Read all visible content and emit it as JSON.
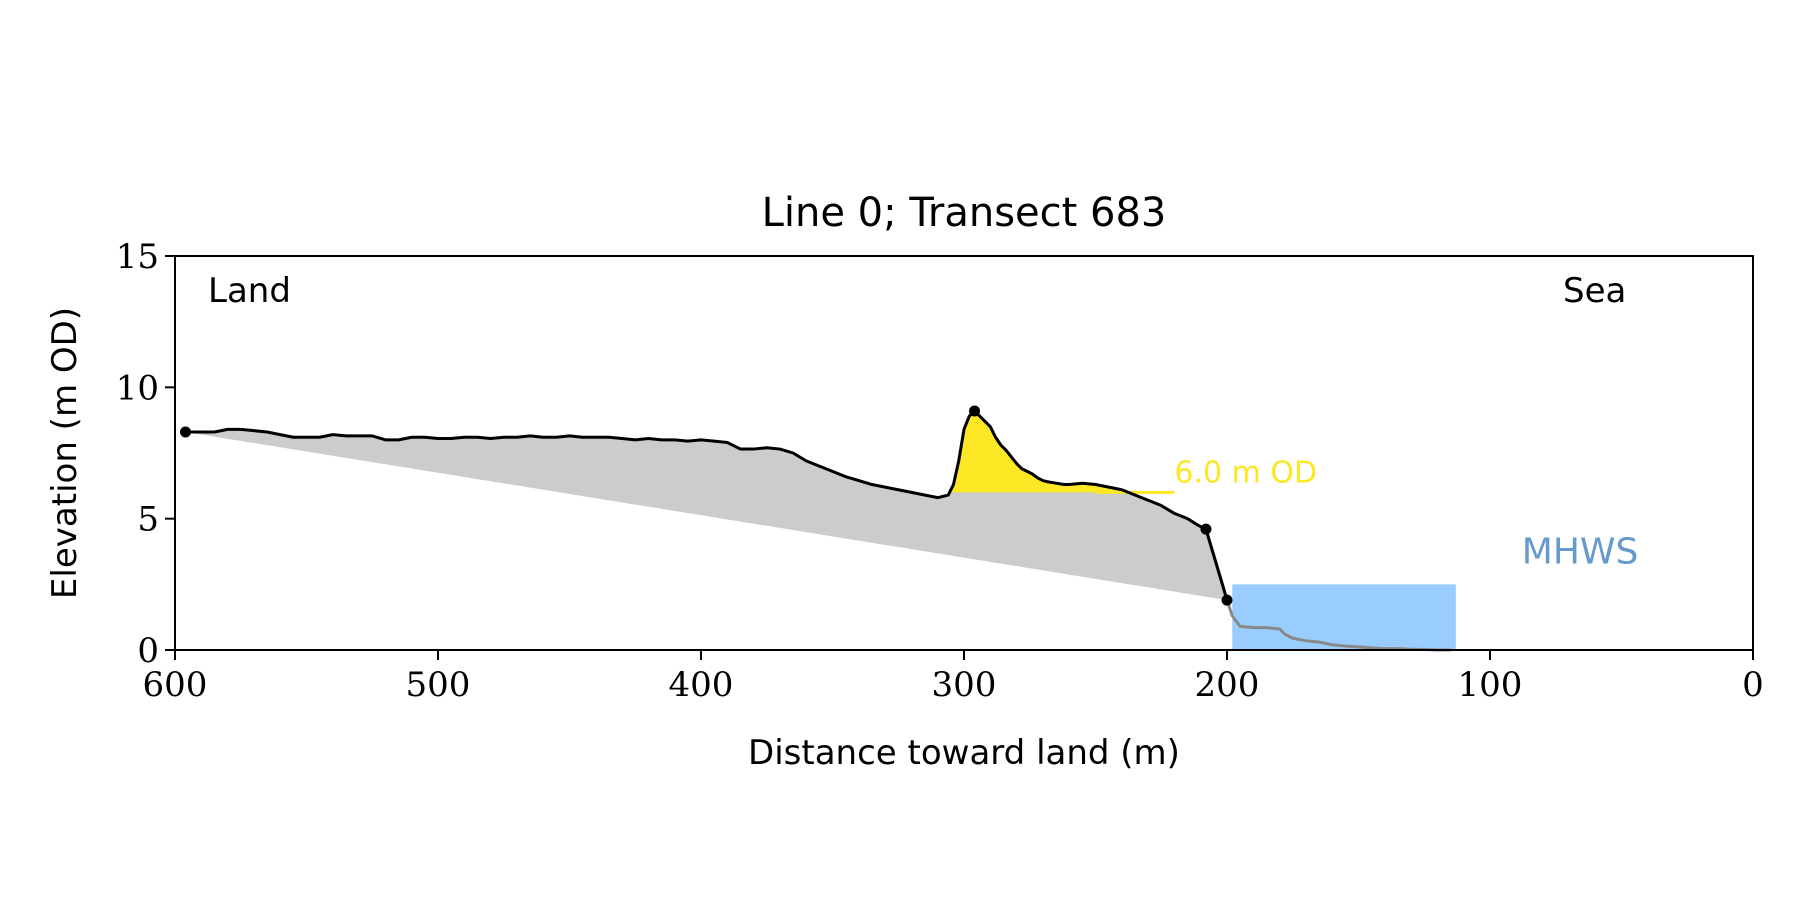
{
  "chart_data": {
    "type": "line",
    "title": "Line 0; Transect 683",
    "xlabel": "Distance toward land (m)",
    "ylabel": "Elevation (m OD)",
    "xlim": [
      600,
      0
    ],
    "ylim": [
      0,
      15
    ],
    "xticks": [
      600,
      500,
      400,
      300,
      200,
      100,
      0
    ],
    "yticks": [
      0,
      5,
      10,
      15
    ],
    "grid": false,
    "annotations": {
      "land": "Land",
      "sea": "Sea",
      "level_label": "6.0 m OD",
      "level_value": 6.0,
      "mhws_label": "MHWS",
      "mhws_value": 2.5
    },
    "colors": {
      "profile": "#000000",
      "below_toe": "#888888",
      "fill_area": "#cccccc",
      "dune_above_level": "#fde725",
      "level_text": "#fde725",
      "mhws_box": "#99ccff",
      "mhws_text": "#6699cc"
    },
    "profile": {
      "x": [
        596,
        590,
        585,
        580,
        575,
        570,
        565,
        560,
        555,
        550,
        545,
        540,
        535,
        530,
        525,
        520,
        515,
        510,
        505,
        500,
        495,
        490,
        485,
        480,
        475,
        470,
        465,
        460,
        455,
        450,
        445,
        440,
        435,
        430,
        425,
        420,
        415,
        410,
        405,
        400,
        395,
        390,
        385,
        380,
        375,
        370,
        365,
        360,
        355,
        350,
        345,
        340,
        335,
        330,
        325,
        320,
        315,
        310,
        306,
        304,
        302,
        300,
        298,
        296,
        294,
        292,
        290,
        288,
        286,
        284,
        282,
        280,
        278,
        276,
        274,
        272,
        270,
        268,
        265,
        262,
        260,
        255,
        250,
        245,
        240,
        235,
        230,
        225,
        220,
        215,
        211,
        208
      ],
      "y": [
        8.3,
        8.3,
        8.3,
        8.4,
        8.4,
        8.35,
        8.3,
        8.2,
        8.1,
        8.1,
        8.1,
        8.2,
        8.15,
        8.15,
        8.15,
        8.0,
        8.0,
        8.1,
        8.1,
        8.05,
        8.05,
        8.1,
        8.1,
        8.05,
        8.1,
        8.1,
        8.15,
        8.1,
        8.1,
        8.15,
        8.1,
        8.1,
        8.1,
        8.05,
        8.0,
        8.05,
        8.0,
        8.0,
        7.95,
        8.0,
        7.95,
        7.9,
        7.65,
        7.65,
        7.7,
        7.65,
        7.5,
        7.2,
        7.0,
        6.8,
        6.6,
        6.45,
        6.3,
        6.2,
        6.1,
        6.0,
        5.9,
        5.8,
        5.9,
        6.3,
        7.2,
        8.4,
        8.9,
        9.1,
        8.9,
        8.7,
        8.5,
        8.1,
        7.8,
        7.6,
        7.35,
        7.1,
        6.9,
        6.8,
        6.7,
        6.55,
        6.45,
        6.4,
        6.35,
        6.3,
        6.3,
        6.35,
        6.3,
        6.2,
        6.1,
        5.9,
        5.7,
        5.5,
        5.2,
        5.0,
        4.75,
        4.6
      ]
    },
    "toe_profile": {
      "x": [
        208,
        205,
        202,
        200,
        198,
        195,
        190,
        185,
        180,
        178,
        175,
        170,
        165,
        160,
        155,
        150,
        145,
        140,
        135,
        130,
        125,
        120,
        115
      ],
      "y": [
        4.6,
        3.6,
        2.6,
        1.9,
        1.3,
        0.9,
        0.85,
        0.85,
        0.8,
        0.6,
        0.45,
        0.35,
        0.3,
        0.2,
        0.15,
        0.12,
        0.08,
        0.05,
        0.05,
        0.03,
        0.02,
        0.0,
        0.0
      ]
    },
    "markers": [
      {
        "x": 596,
        "y": 8.3
      },
      {
        "x": 296,
        "y": 9.1
      },
      {
        "x": 208,
        "y": 4.6
      },
      {
        "x": 200,
        "y": 1.9
      }
    ],
    "level_line_x": [
      250,
      220
    ],
    "mhws_box_x": [
      198,
      113
    ]
  }
}
